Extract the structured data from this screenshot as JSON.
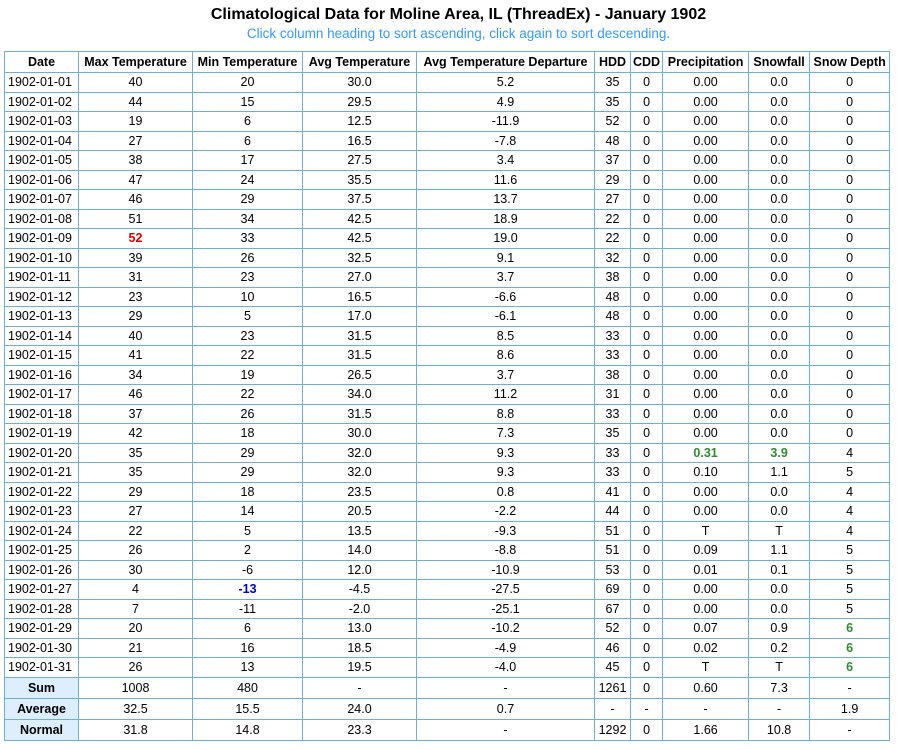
{
  "title": "Climatological Data for Moline Area, IL (ThreadEx) - January 1902",
  "subtitle": "Click column heading to sort ascending, click again to sort descending.",
  "columns": [
    "Date",
    "Max Temperature",
    "Min Temperature",
    "Avg Temperature",
    "Avg Temperature Departure",
    "HDD",
    "CDD",
    "Precipitation",
    "Snowfall",
    "Snow Depth"
  ],
  "rows": [
    [
      "1902-01-01",
      "40",
      "20",
      "30.0",
      "5.2",
      "35",
      "0",
      "0.00",
      "0.0",
      "0"
    ],
    [
      "1902-01-02",
      "44",
      "15",
      "29.5",
      "4.9",
      "35",
      "0",
      "0.00",
      "0.0",
      "0"
    ],
    [
      "1902-01-03",
      "19",
      "6",
      "12.5",
      "-11.9",
      "52",
      "0",
      "0.00",
      "0.0",
      "0"
    ],
    [
      "1902-01-04",
      "27",
      "6",
      "16.5",
      "-7.8",
      "48",
      "0",
      "0.00",
      "0.0",
      "0"
    ],
    [
      "1902-01-05",
      "38",
      "17",
      "27.5",
      "3.4",
      "37",
      "0",
      "0.00",
      "0.0",
      "0"
    ],
    [
      "1902-01-06",
      "47",
      "24",
      "35.5",
      "11.6",
      "29",
      "0",
      "0.00",
      "0.0",
      "0"
    ],
    [
      "1902-01-07",
      "46",
      "29",
      "37.5",
      "13.7",
      "27",
      "0",
      "0.00",
      "0.0",
      "0"
    ],
    [
      "1902-01-08",
      "51",
      "34",
      "42.5",
      "18.9",
      "22",
      "0",
      "0.00",
      "0.0",
      "0"
    ],
    [
      "1902-01-09",
      "52",
      "33",
      "42.5",
      "19.0",
      "22",
      "0",
      "0.00",
      "0.0",
      "0"
    ],
    [
      "1902-01-10",
      "39",
      "26",
      "32.5",
      "9.1",
      "32",
      "0",
      "0.00",
      "0.0",
      "0"
    ],
    [
      "1902-01-11",
      "31",
      "23",
      "27.0",
      "3.7",
      "38",
      "0",
      "0.00",
      "0.0",
      "0"
    ],
    [
      "1902-01-12",
      "23",
      "10",
      "16.5",
      "-6.6",
      "48",
      "0",
      "0.00",
      "0.0",
      "0"
    ],
    [
      "1902-01-13",
      "29",
      "5",
      "17.0",
      "-6.1",
      "48",
      "0",
      "0.00",
      "0.0",
      "0"
    ],
    [
      "1902-01-14",
      "40",
      "23",
      "31.5",
      "8.5",
      "33",
      "0",
      "0.00",
      "0.0",
      "0"
    ],
    [
      "1902-01-15",
      "41",
      "22",
      "31.5",
      "8.6",
      "33",
      "0",
      "0.00",
      "0.0",
      "0"
    ],
    [
      "1902-01-16",
      "34",
      "19",
      "26.5",
      "3.7",
      "38",
      "0",
      "0.00",
      "0.0",
      "0"
    ],
    [
      "1902-01-17",
      "46",
      "22",
      "34.0",
      "11.2",
      "31",
      "0",
      "0.00",
      "0.0",
      "0"
    ],
    [
      "1902-01-18",
      "37",
      "26",
      "31.5",
      "8.8",
      "33",
      "0",
      "0.00",
      "0.0",
      "0"
    ],
    [
      "1902-01-19",
      "42",
      "18",
      "30.0",
      "7.3",
      "35",
      "0",
      "0.00",
      "0.0",
      "0"
    ],
    [
      "1902-01-20",
      "35",
      "29",
      "32.0",
      "9.3",
      "33",
      "0",
      "0.31",
      "3.9",
      "4"
    ],
    [
      "1902-01-21",
      "35",
      "29",
      "32.0",
      "9.3",
      "33",
      "0",
      "0.10",
      "1.1",
      "5"
    ],
    [
      "1902-01-22",
      "29",
      "18",
      "23.5",
      "0.8",
      "41",
      "0",
      "0.00",
      "0.0",
      "4"
    ],
    [
      "1902-01-23",
      "27",
      "14",
      "20.5",
      "-2.2",
      "44",
      "0",
      "0.00",
      "0.0",
      "4"
    ],
    [
      "1902-01-24",
      "22",
      "5",
      "13.5",
      "-9.3",
      "51",
      "0",
      "T",
      "T",
      "4"
    ],
    [
      "1902-01-25",
      "26",
      "2",
      "14.0",
      "-8.8",
      "51",
      "0",
      "0.09",
      "1.1",
      "5"
    ],
    [
      "1902-01-26",
      "30",
      "-6",
      "12.0",
      "-10.9",
      "53",
      "0",
      "0.01",
      "0.1",
      "5"
    ],
    [
      "1902-01-27",
      "4",
      "-13",
      "-4.5",
      "-27.5",
      "69",
      "0",
      "0.00",
      "0.0",
      "5"
    ],
    [
      "1902-01-28",
      "7",
      "-11",
      "-2.0",
      "-25.1",
      "67",
      "0",
      "0.00",
      "0.0",
      "5"
    ],
    [
      "1902-01-29",
      "20",
      "6",
      "13.0",
      "-10.2",
      "52",
      "0",
      "0.07",
      "0.9",
      "6"
    ],
    [
      "1902-01-30",
      "21",
      "16",
      "18.5",
      "-4.9",
      "46",
      "0",
      "0.02",
      "0.2",
      "6"
    ],
    [
      "1902-01-31",
      "26",
      "13",
      "19.5",
      "-4.0",
      "45",
      "0",
      "T",
      "T",
      "6"
    ]
  ],
  "highlights": [
    {
      "row": 8,
      "col": 1,
      "color": "red"
    },
    {
      "row": 26,
      "col": 2,
      "color": "blue"
    },
    {
      "row": 19,
      "col": 7,
      "color": "green"
    },
    {
      "row": 19,
      "col": 8,
      "color": "green"
    },
    {
      "row": 28,
      "col": 9,
      "color": "green"
    },
    {
      "row": 29,
      "col": 9,
      "color": "green"
    },
    {
      "row": 30,
      "col": 9,
      "color": "green"
    }
  ],
  "footer": [
    [
      "Sum",
      "1008",
      "480",
      "-",
      "-",
      "1261",
      "0",
      "0.60",
      "7.3",
      "-"
    ],
    [
      "Average",
      "32.5",
      "15.5",
      "24.0",
      "0.7",
      "-",
      "-",
      "-",
      "-",
      "1.9"
    ],
    [
      "Normal",
      "31.8",
      "14.8",
      "23.3",
      "-",
      "1292",
      "0",
      "1.66",
      "10.8",
      "-"
    ]
  ],
  "colors": {
    "border": "#6ab0d8",
    "subtitle": "#3399ff",
    "footer_label_bg": "#ddeeff",
    "max_highlight": "#e00000",
    "min_highlight": "#0000e0",
    "precip_highlight": "#2e8b2e"
  }
}
